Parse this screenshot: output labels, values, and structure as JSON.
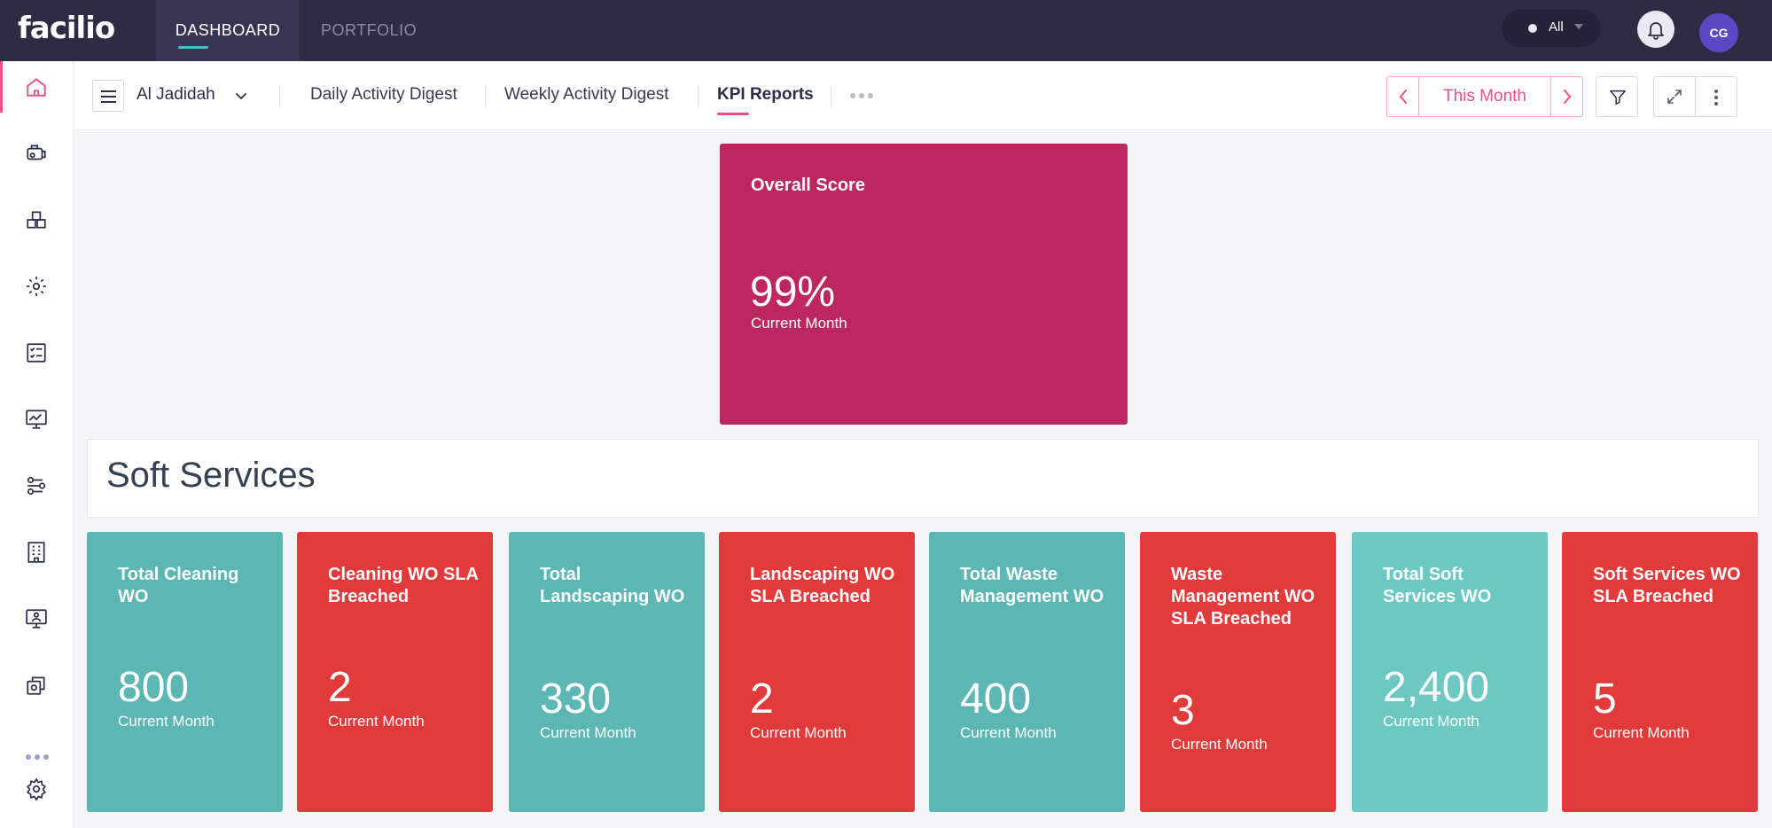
{
  "app": {
    "logo": "facilio",
    "nav_tabs": [
      {
        "label": "DASHBOARD",
        "active": true
      },
      {
        "label": "PORTFOLIO",
        "active": false
      }
    ],
    "site_filter": "All",
    "user_initials": "CG",
    "accent_color": "#ef4f82"
  },
  "sidebar": {
    "items": [
      {
        "icon": "home-icon",
        "active": true
      },
      {
        "icon": "work-orders-icon"
      },
      {
        "icon": "inventory-icon"
      },
      {
        "icon": "maintenance-icon"
      },
      {
        "icon": "checklist-icon"
      },
      {
        "icon": "analytics-icon"
      },
      {
        "icon": "automation-icon"
      },
      {
        "icon": "building-icon"
      },
      {
        "icon": "visitor-icon"
      },
      {
        "icon": "assets-icon"
      },
      {
        "icon": "settings-icon"
      }
    ]
  },
  "subheader": {
    "site_name": "Al Jadidah",
    "tabs": [
      {
        "label": "Daily Activity Digest",
        "active": false
      },
      {
        "label": "Weekly Activity Digest",
        "active": false
      },
      {
        "label": "KPI Reports",
        "active": true
      }
    ],
    "period": "This Month"
  },
  "overall": {
    "title": "Overall Score",
    "value": "99%",
    "subtitle": "Current Month",
    "color": "#bb275e"
  },
  "section": {
    "title": "Soft Services"
  },
  "kpis": [
    {
      "title": "Total Cleaning WO",
      "value": "800",
      "subtitle": "Current Month",
      "color": "#5bb6b4"
    },
    {
      "title": "Cleaning WO SLA Breached",
      "value": "2",
      "subtitle": "Current Month",
      "color": "#e03a3b"
    },
    {
      "title": "Total Landscaping WO",
      "value": "330",
      "subtitle": "Current Month",
      "color": "#5bb6b4"
    },
    {
      "title": "Landscaping WO SLA Breached",
      "value": "2",
      "subtitle": "Current Month",
      "color": "#e03a3b"
    },
    {
      "title": "Total Waste Management WO",
      "value": "400",
      "subtitle": "Current Month",
      "color": "#5bb6b4"
    },
    {
      "title": "Waste Management WO SLA Breached",
      "value": "3",
      "subtitle": "Current Month",
      "color": "#e03a3b"
    },
    {
      "title": "Total Soft Services WO",
      "value": "2,400",
      "subtitle": "Current Month",
      "color": "#6cc8c3"
    },
    {
      "title": "Soft Services WO SLA Breached",
      "value": "5",
      "subtitle": "Current Month",
      "color": "#e03a3b"
    }
  ]
}
